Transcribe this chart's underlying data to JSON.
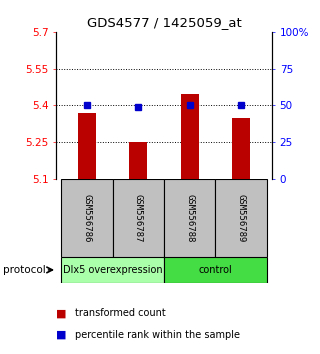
{
  "title": "GDS4577 / 1425059_at",
  "samples": [
    "GSM556786",
    "GSM556787",
    "GSM556788",
    "GSM556789"
  ],
  "bar_values": [
    5.37,
    5.252,
    5.448,
    5.348
  ],
  "bar_base": 5.1,
  "percentile_values": [
    50,
    49,
    50,
    50
  ],
  "left_ylim": [
    5.1,
    5.7
  ],
  "right_ylim": [
    0,
    100
  ],
  "left_yticks": [
    5.1,
    5.25,
    5.4,
    5.55,
    5.7
  ],
  "right_yticks": [
    0,
    25,
    50,
    75,
    100
  ],
  "right_yticklabels": [
    "0",
    "25",
    "50",
    "75",
    "100%"
  ],
  "bar_color": "#bb0000",
  "percentile_color": "#0000cc",
  "groups": [
    {
      "label": "Dlx5 overexpression",
      "samples_idx": [
        0,
        1
      ],
      "color": "#aaffaa"
    },
    {
      "label": "control",
      "samples_idx": [
        2,
        3
      ],
      "color": "#44dd44"
    }
  ],
  "protocol_label": "protocol",
  "legend_bar_label": "transformed count",
  "legend_pct_label": "percentile rank within the sample",
  "bg_sample_box": "#c0c0c0",
  "bar_width": 0.35
}
